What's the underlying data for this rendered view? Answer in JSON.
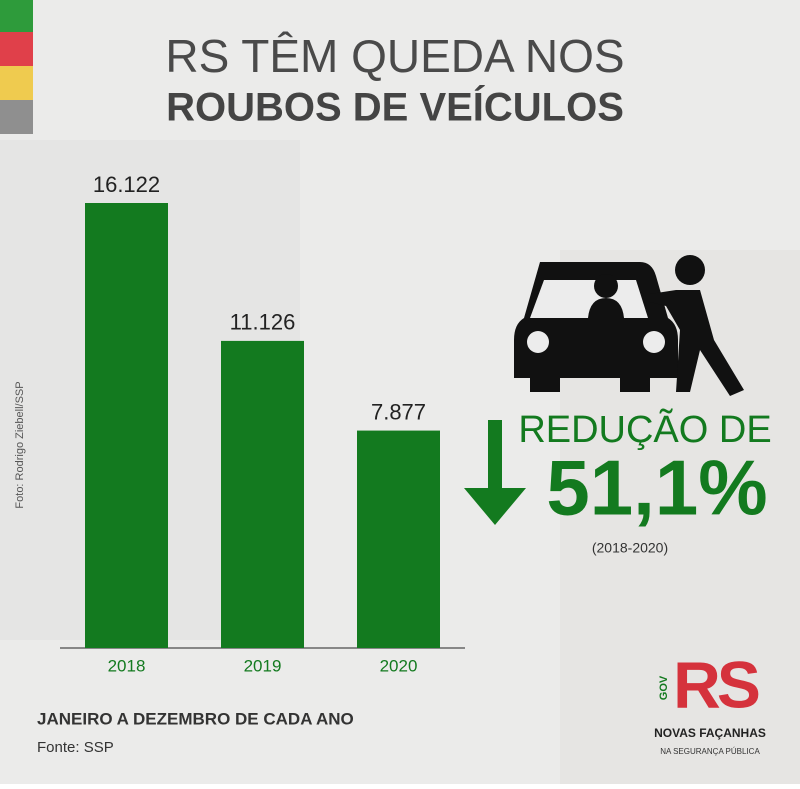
{
  "chart_data": {
    "type": "bar",
    "title": "RS TÊM QUEDA NOS",
    "subtitle": "ROUBOS DE VEÍCULOS",
    "categories": [
      "2018",
      "2019",
      "2020"
    ],
    "values": [
      16122,
      11126,
      7877
    ],
    "value_labels": [
      "16.122",
      "11.126",
      "7.877"
    ],
    "color": "#137a1f",
    "annotations": {
      "reduction_label": "REDUÇÃO DE",
      "reduction_value": "51,1%",
      "reduction_period": "(2018-2020)"
    },
    "period_note": "JANEIRO A DEZEMBRO DE CADA ANO",
    "source": "Fonte: SSP",
    "photo_credit": "Foto: Rodrigo Ziebell/SSP"
  },
  "logo": {
    "gov": "GOV",
    "rs": "RS",
    "line1": "NOVAS FAÇANHAS",
    "line2": "NA SEGURANÇA PÚBLICA"
  }
}
